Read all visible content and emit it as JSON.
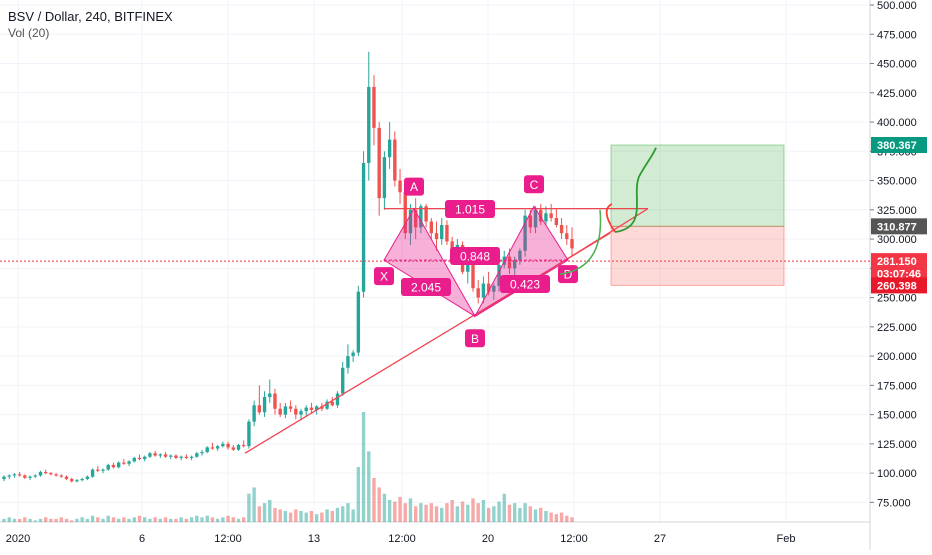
{
  "header": {
    "title": "BSV / Dollar, 240, BITFINEX",
    "volume_label": "Vol (20)"
  },
  "chart_data": {
    "type": "candlestick",
    "symbol": "BSV / Dollar",
    "interval": "240",
    "exchange": "BITFINEX",
    "y_range": [
      70,
      500
    ],
    "y_ticks": [
      "75.000",
      "100.000",
      "125.000",
      "150.000",
      "175.000",
      "200.000",
      "225.000",
      "250.000",
      "275.000",
      "300.000",
      "325.000",
      "350.000",
      "375.000",
      "400.000",
      "425.000",
      "450.000",
      "475.000",
      "500.000"
    ],
    "x_ticks": [
      "2020",
      "6",
      "12:00",
      "13",
      "12:00",
      "20",
      "12:00",
      "27",
      "Feb"
    ],
    "price_labels": [
      {
        "text": "380.367",
        "value": 380.367,
        "color": "#089981"
      },
      {
        "text": "310.877",
        "value": 310.877,
        "color": "#555555"
      },
      {
        "text": "281.150",
        "value": 281.15,
        "color": "#f23645"
      },
      {
        "text": "03:07:46",
        "value": 270.5,
        "color": "#f23645"
      },
      {
        "text": "260.398",
        "value": 260.398,
        "color": "#e8182b"
      }
    ],
    "colors": {
      "up": "#26a69a",
      "down": "#ef5350",
      "pattern": "#e91e8c",
      "trendline": "#f0444f",
      "target": "#4caf50",
      "stop": "#f44336"
    },
    "candles": [
      [
        95,
        98,
        93,
        97
      ],
      [
        97,
        99,
        95,
        98
      ],
      [
        98,
        100,
        96,
        99
      ],
      [
        99,
        101,
        97,
        98
      ],
      [
        98,
        99,
        95,
        96
      ],
      [
        96,
        98,
        94,
        97
      ],
      [
        97,
        99,
        96,
        98
      ],
      [
        98,
        102,
        97,
        101
      ],
      [
        101,
        103,
        99,
        100
      ],
      [
        100,
        101,
        98,
        99
      ],
      [
        99,
        100,
        97,
        98
      ],
      [
        98,
        99,
        96,
        97
      ],
      [
        97,
        98,
        94,
        95
      ],
      [
        95,
        96,
        92,
        93
      ],
      [
        93,
        95,
        92,
        94
      ],
      [
        94,
        96,
        93,
        95
      ],
      [
        95,
        98,
        94,
        97
      ],
      [
        97,
        104,
        96,
        103
      ],
      [
        103,
        106,
        101,
        102
      ],
      [
        102,
        104,
        100,
        103
      ],
      [
        103,
        108,
        102,
        107
      ],
      [
        107,
        109,
        104,
        105
      ],
      [
        105,
        110,
        104,
        109
      ],
      [
        109,
        112,
        107,
        108
      ],
      [
        108,
        111,
        106,
        110
      ],
      [
        110,
        114,
        109,
        113
      ],
      [
        113,
        116,
        111,
        112
      ],
      [
        112,
        115,
        110,
        114
      ],
      [
        114,
        118,
        113,
        117
      ],
      [
        117,
        119,
        114,
        115
      ],
      [
        115,
        117,
        113,
        116
      ],
      [
        116,
        118,
        113,
        114
      ],
      [
        114,
        116,
        112,
        115
      ],
      [
        115,
        116,
        112,
        113
      ],
      [
        113,
        115,
        111,
        114
      ],
      [
        114,
        116,
        112,
        113
      ],
      [
        113,
        115,
        111,
        114
      ],
      [
        114,
        118,
        113,
        117
      ],
      [
        117,
        120,
        115,
        118
      ],
      [
        118,
        123,
        117,
        122
      ],
      [
        122,
        126,
        120,
        121
      ],
      [
        121,
        124,
        119,
        123
      ],
      [
        123,
        127,
        122,
        125
      ],
      [
        125,
        127,
        120,
        122
      ],
      [
        122,
        124,
        119,
        120
      ],
      [
        120,
        125,
        119,
        124
      ],
      [
        124,
        128,
        122,
        123
      ],
      [
        123,
        146,
        121,
        144
      ],
      [
        144,
        162,
        140,
        158
      ],
      [
        158,
        175,
        150,
        152
      ],
      [
        152,
        170,
        148,
        165
      ],
      [
        165,
        180,
        160,
        168
      ],
      [
        168,
        172,
        150,
        155
      ],
      [
        155,
        160,
        148,
        150
      ],
      [
        150,
        160,
        147,
        157
      ],
      [
        157,
        162,
        152,
        155
      ],
      [
        155,
        158,
        146,
        150
      ],
      [
        150,
        155,
        145,
        153
      ],
      [
        153,
        158,
        149,
        156
      ],
      [
        156,
        160,
        151,
        154
      ],
      [
        154,
        158,
        150,
        157
      ],
      [
        157,
        160,
        153,
        155
      ],
      [
        155,
        163,
        154,
        161
      ],
      [
        161,
        165,
        157,
        158
      ],
      [
        158,
        170,
        156,
        168
      ],
      [
        168,
        195,
        166,
        190
      ],
      [
        190,
        210,
        185,
        200
      ],
      [
        200,
        205,
        195,
        203
      ],
      [
        203,
        260,
        200,
        255
      ],
      [
        255,
        375,
        250,
        365
      ],
      [
        365,
        460,
        350,
        430
      ],
      [
        430,
        440,
        380,
        395
      ],
      [
        395,
        400,
        320,
        335
      ],
      [
        335,
        375,
        325,
        370
      ],
      [
        370,
        400,
        360,
        385
      ],
      [
        385,
        392,
        345,
        350
      ],
      [
        350,
        360,
        330,
        340
      ],
      [
        340,
        345,
        300,
        305
      ],
      [
        305,
        330,
        295,
        325
      ],
      [
        325,
        335,
        300,
        310
      ],
      [
        310,
        330,
        305,
        328
      ],
      [
        328,
        330,
        310,
        315
      ],
      [
        315,
        318,
        300,
        305
      ],
      [
        305,
        315,
        290,
        300
      ],
      [
        300,
        318,
        295,
        312
      ],
      [
        312,
        316,
        295,
        298
      ],
      [
        298,
        302,
        280,
        285
      ],
      [
        285,
        300,
        278,
        295
      ],
      [
        295,
        298,
        270,
        272
      ],
      [
        272,
        285,
        262,
        280
      ],
      [
        280,
        290,
        255,
        258
      ],
      [
        258,
        265,
        245,
        250
      ],
      [
        250,
        268,
        245,
        262
      ],
      [
        262,
        272,
        252,
        255
      ],
      [
        255,
        262,
        248,
        260
      ],
      [
        260,
        280,
        255,
        278
      ],
      [
        278,
        290,
        275,
        285
      ],
      [
        285,
        292,
        270,
        275
      ],
      [
        275,
        285,
        268,
        282
      ],
      [
        282,
        292,
        278,
        290
      ],
      [
        290,
        325,
        285,
        320
      ],
      [
        320,
        325,
        305,
        310
      ],
      [
        310,
        328,
        305,
        325
      ],
      [
        325,
        330,
        312,
        315
      ],
      [
        315,
        328,
        312,
        322
      ],
      [
        322,
        330,
        315,
        318
      ],
      [
        318,
        326,
        310,
        312
      ],
      [
        312,
        318,
        300,
        305
      ],
      [
        305,
        312,
        295,
        300
      ],
      [
        300,
        310,
        285,
        292
      ]
    ],
    "volumes": [
      2,
      3,
      2,
      2,
      3,
      2,
      1,
      2,
      3,
      2,
      2,
      3,
      2,
      1,
      2,
      3,
      2,
      4,
      3,
      2,
      4,
      3,
      2,
      3,
      2,
      3,
      4,
      3,
      2,
      3,
      2,
      3,
      2,
      2,
      3,
      2,
      3,
      4,
      3,
      4,
      3,
      2,
      3,
      4,
      3,
      2,
      3,
      18,
      22,
      10,
      12,
      14,
      9,
      8,
      7,
      6,
      8,
      7,
      6,
      7,
      5,
      6,
      8,
      7,
      9,
      10,
      12,
      8,
      35,
      70,
      45,
      28,
      22,
      18,
      14,
      13,
      16,
      12,
      15,
      10,
      12,
      11,
      12,
      10,
      9,
      12,
      14,
      10,
      13,
      11,
      15,
      12,
      14,
      9,
      10,
      13,
      18,
      11,
      12,
      9,
      12,
      10,
      8,
      9,
      7,
      6,
      5,
      6,
      4,
      3
    ],
    "harmonic_pattern": {
      "points": [
        {
          "label": "X",
          "value": 282
        },
        {
          "label": "A",
          "value": 326
        },
        {
          "label": "B",
          "value": 234
        },
        {
          "label": "C",
          "value": 328
        },
        {
          "label": "D",
          "value": 282
        }
      ],
      "ratios": [
        "1.015",
        "0.848",
        "2.045",
        "0.423"
      ]
    },
    "position": {
      "entry": 310.877,
      "target": 380.367,
      "stop": 260.398
    }
  }
}
